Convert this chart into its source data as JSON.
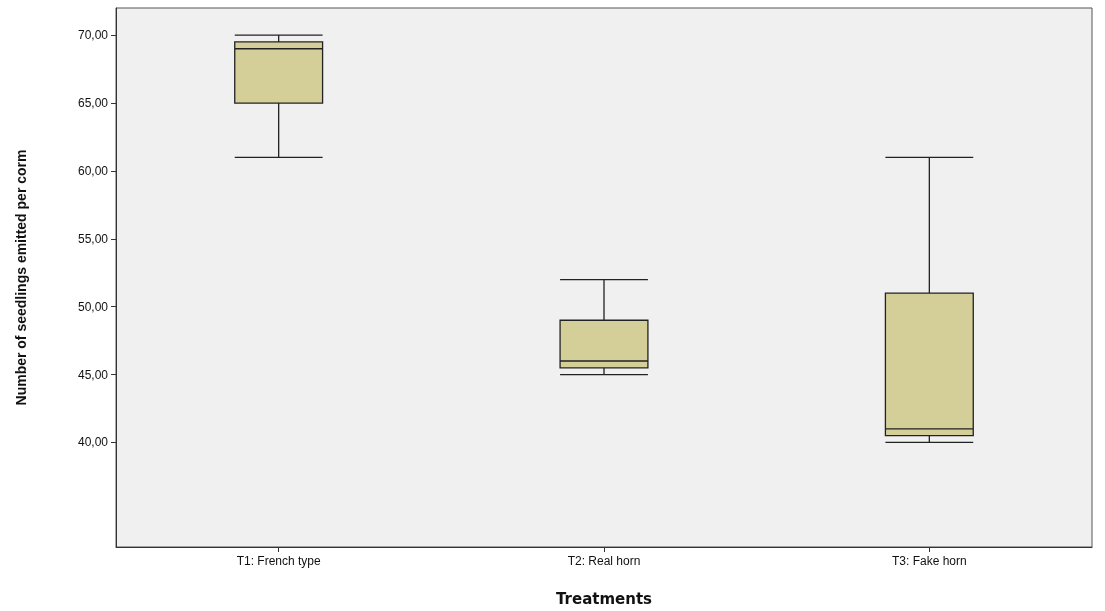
{
  "chart_data": {
    "type": "box",
    "xlabel": "Treatments",
    "ylabel": "Number of seedlings emitted per corm",
    "categories": [
      "T1: French type",
      "T2: Real horn",
      "T3: Fake horn"
    ],
    "color": "#d4cf99",
    "boxes": [
      {
        "low": 61,
        "q1": 65,
        "median": 69,
        "q3": 69.5,
        "high": 70
      },
      {
        "low": 45,
        "q1": 45.5,
        "median": 46,
        "q3": 49,
        "high": 52
      },
      {
        "low": 40,
        "q1": 40.5,
        "median": 41,
        "q3": 51,
        "high": 61
      }
    ],
    "ylim": [
      32.3,
      72
    ],
    "yticks": [
      {
        "value": 40,
        "label": "40,00"
      },
      {
        "value": 45,
        "label": "45,00"
      },
      {
        "value": 50,
        "label": "50,00"
      },
      {
        "value": 55,
        "label": "55,00"
      },
      {
        "value": 60,
        "label": "60,00"
      },
      {
        "value": 65,
        "label": "65,00"
      },
      {
        "value": 70,
        "label": "70,00"
      }
    ],
    "grid": false
  }
}
